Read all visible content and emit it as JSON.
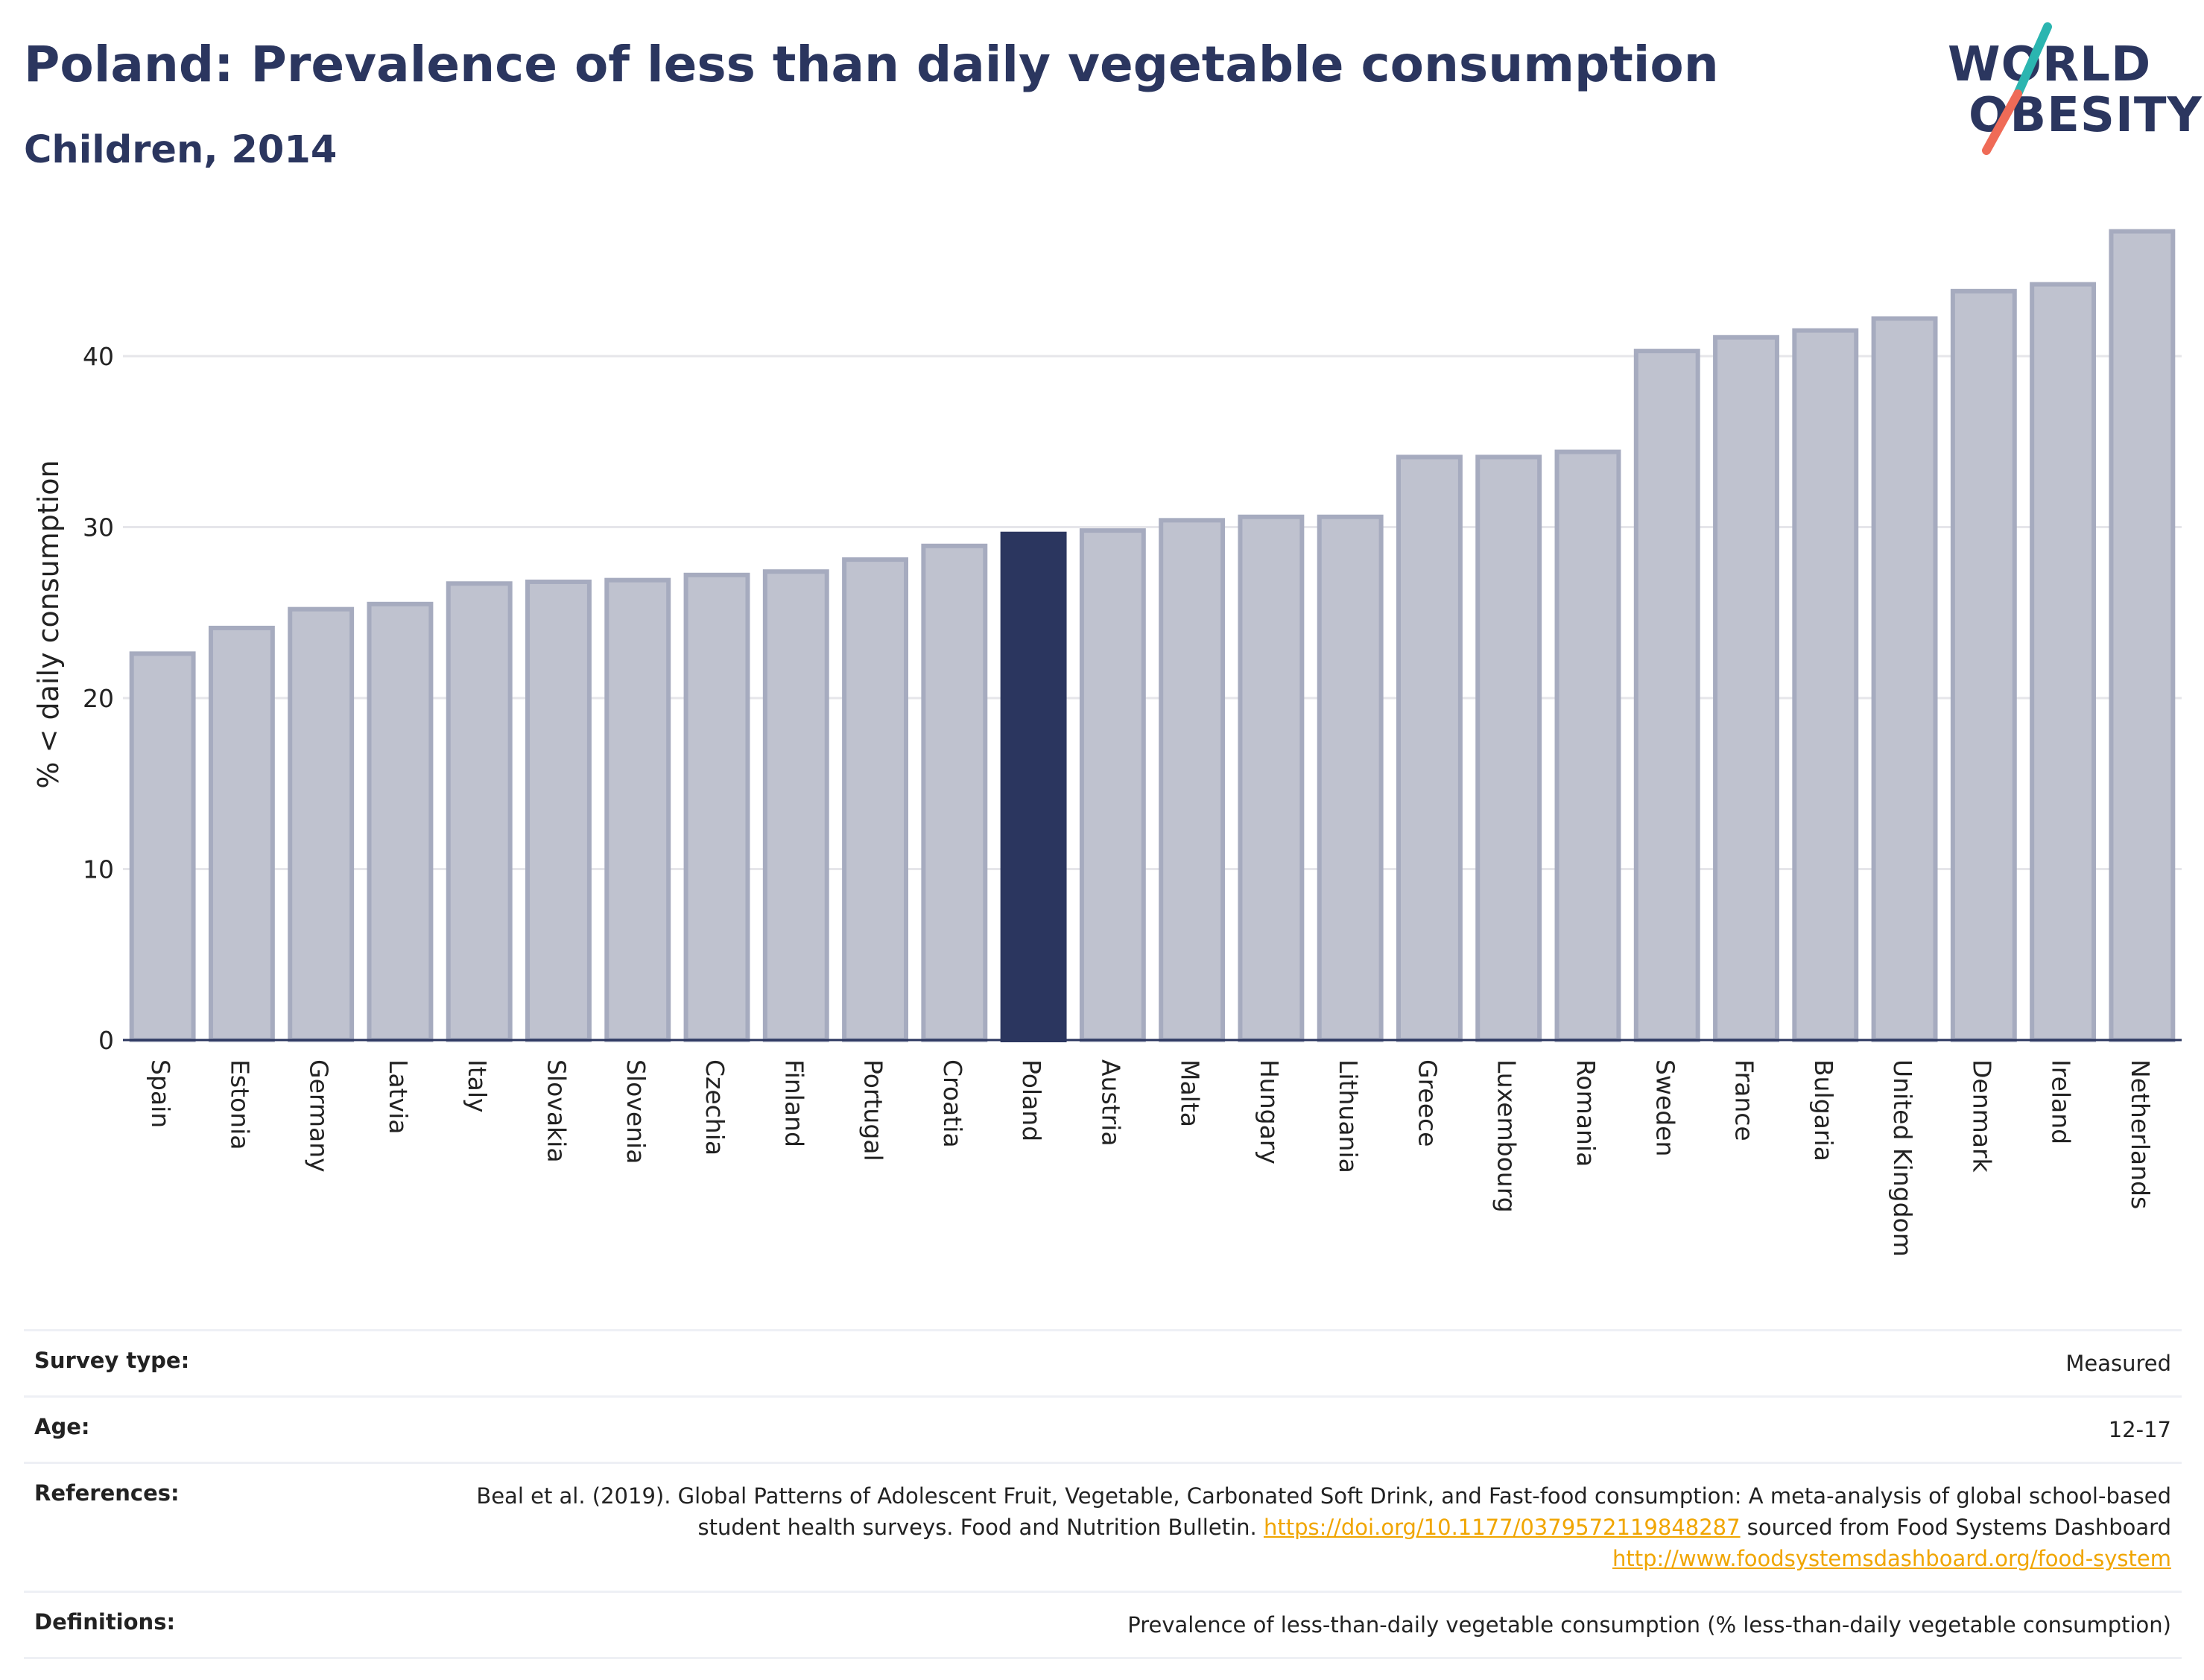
{
  "header": {
    "title": "Poland: Prevalence of less than daily vegetable consumption",
    "subtitle": "Children, 2014"
  },
  "logo": {
    "line1": "WORLD",
    "line2": "OBESITY",
    "text_color": "#2b365f",
    "slash_colors": [
      "#2bb5b0",
      "#ef6b57"
    ]
  },
  "chart_data": {
    "type": "bar",
    "title": "Poland: Prevalence of less than daily vegetable consumption",
    "subtitle": "Children, 2014",
    "xlabel": "",
    "ylabel": "% < daily consumption",
    "ylim": [
      0,
      49.5
    ],
    "yticks": [
      0,
      10,
      20,
      30,
      40
    ],
    "grid": true,
    "highlight": "Poland",
    "highlight_color": "#2b365f",
    "bar_color": "#bfc2cf",
    "categories": [
      "Spain",
      "Estonia",
      "Germany",
      "Latvia",
      "Italy",
      "Slovakia",
      "Slovenia",
      "Czechia",
      "Finland",
      "Portugal",
      "Croatia",
      "Poland",
      "Austria",
      "Malta",
      "Hungary",
      "Lithuania",
      "Greece",
      "Luxembourg",
      "Romania",
      "Sweden",
      "France",
      "Bulgaria",
      "United Kingdom",
      "Denmark",
      "Ireland",
      "Netherlands"
    ],
    "values": [
      22.6,
      24.1,
      25.2,
      25.5,
      26.7,
      26.8,
      26.9,
      27.2,
      27.4,
      28.1,
      28.9,
      29.6,
      29.8,
      30.4,
      30.6,
      30.6,
      34.1,
      34.1,
      34.4,
      40.3,
      41.1,
      41.5,
      42.2,
      43.8,
      44.2,
      47.3
    ]
  },
  "meta": {
    "rows": [
      {
        "key": "Survey type:",
        "value": "Measured"
      },
      {
        "key": "Age:",
        "value": "12-17"
      },
      {
        "key": "References:",
        "value_parts": [
          {
            "text": "Beal et al. (2019). Global Patterns of Adolescent Fruit, Vegetable, Carbonated Soft Drink, and Fast-food consumption: A meta-analysis of global school-based student health surveys. Food and Nutrition Bulletin. ",
            "link": false
          },
          {
            "text": "https://doi.org/10.1177/0379572119848287",
            "link": true
          },
          {
            "text": " sourced from Food Systems Dashboard ",
            "link": false
          },
          {
            "text": "http://www.foodsystemsdashboard.org/food-system",
            "link": true
          }
        ]
      },
      {
        "key": "Definitions:",
        "value": "Prevalence of less-than-daily vegetable consumption (% less-than-daily vegetable consumption)"
      }
    ]
  }
}
